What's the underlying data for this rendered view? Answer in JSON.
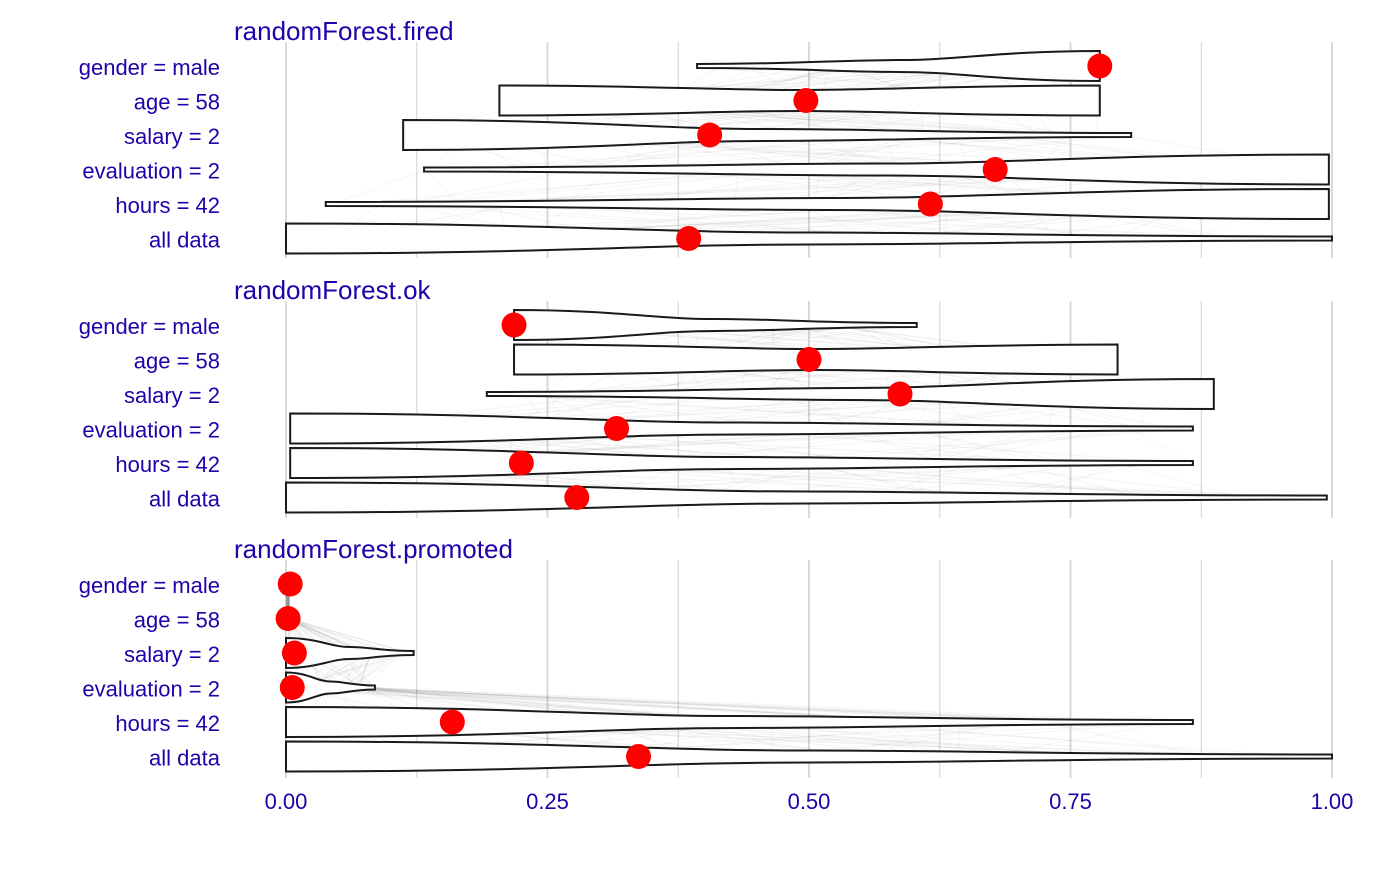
{
  "colors": {
    "label_text": "#2200aa",
    "point": "#ff0000",
    "violin_stroke": "#1a1a1a",
    "violin_fill": "#ffffff",
    "grid": "#d9d9d9",
    "trace": "#000000"
  },
  "chart_data": {
    "type": "break_down_violin",
    "xlim": [
      0,
      1
    ],
    "x_ticks": [
      {
        "value": 0,
        "label": "0.00"
      },
      {
        "value": 0.25,
        "label": "0.25"
      },
      {
        "value": 0.5,
        "label": "0.50"
      },
      {
        "value": 0.75,
        "label": "0.75"
      },
      {
        "value": 1,
        "label": "1.00"
      }
    ],
    "grid": true,
    "panels": [
      {
        "title": "randomForest.fired",
        "rows": [
          {
            "label": "gender = male",
            "value": 0.778,
            "range": [
              0.393,
              0.778
            ],
            "dir": "down"
          },
          {
            "label": "age = 58",
            "value": 0.497,
            "range": [
              0.204,
              0.778
            ],
            "dir": "flat"
          },
          {
            "label": "salary = 2",
            "value": 0.405,
            "range": [
              0.112,
              0.808
            ],
            "dir": "up"
          },
          {
            "label": "evaluation = 2",
            "value": 0.678,
            "range": [
              0.132,
              0.997
            ],
            "dir": "down"
          },
          {
            "label": "hours = 42",
            "value": 0.616,
            "range": [
              0.038,
              0.997
            ],
            "dir": "down"
          },
          {
            "label": "all data",
            "value": 0.385,
            "range": [
              0.0,
              1.0
            ],
            "dir": "up"
          }
        ]
      },
      {
        "title": "randomForest.ok",
        "rows": [
          {
            "label": "gender = male",
            "value": 0.218,
            "range": [
              0.218,
              0.603
            ],
            "dir": "up"
          },
          {
            "label": "age = 58",
            "value": 0.5,
            "range": [
              0.218,
              0.795
            ],
            "dir": "flat"
          },
          {
            "label": "salary = 2",
            "value": 0.587,
            "range": [
              0.192,
              0.887
            ],
            "dir": "down"
          },
          {
            "label": "evaluation = 2",
            "value": 0.316,
            "range": [
              0.004,
              0.867
            ],
            "dir": "up"
          },
          {
            "label": "hours = 42",
            "value": 0.225,
            "range": [
              0.004,
              0.867
            ],
            "dir": "up"
          },
          {
            "label": "all data",
            "value": 0.278,
            "range": [
              0.0,
              0.995
            ],
            "dir": "up"
          }
        ]
      },
      {
        "title": "randomForest.promoted",
        "rows": [
          {
            "label": "gender = male",
            "value": 0.004,
            "range": [
              0.0,
              0.004
            ],
            "dir": "flat"
          },
          {
            "label": "age = 58",
            "value": 0.002,
            "range": [
              0.0,
              0.004
            ],
            "dir": "flat"
          },
          {
            "label": "salary = 2",
            "value": 0.008,
            "range": [
              0.0,
              0.122
            ],
            "dir": "up"
          },
          {
            "label": "evaluation = 2",
            "value": 0.006,
            "range": [
              0.0,
              0.085
            ],
            "dir": "up"
          },
          {
            "label": "hours = 42",
            "value": 0.159,
            "range": [
              0.0,
              0.867
            ],
            "dir": "up"
          },
          {
            "label": "all data",
            "value": 0.337,
            "range": [
              0.0,
              1.0
            ],
            "dir": "up"
          }
        ]
      }
    ]
  }
}
